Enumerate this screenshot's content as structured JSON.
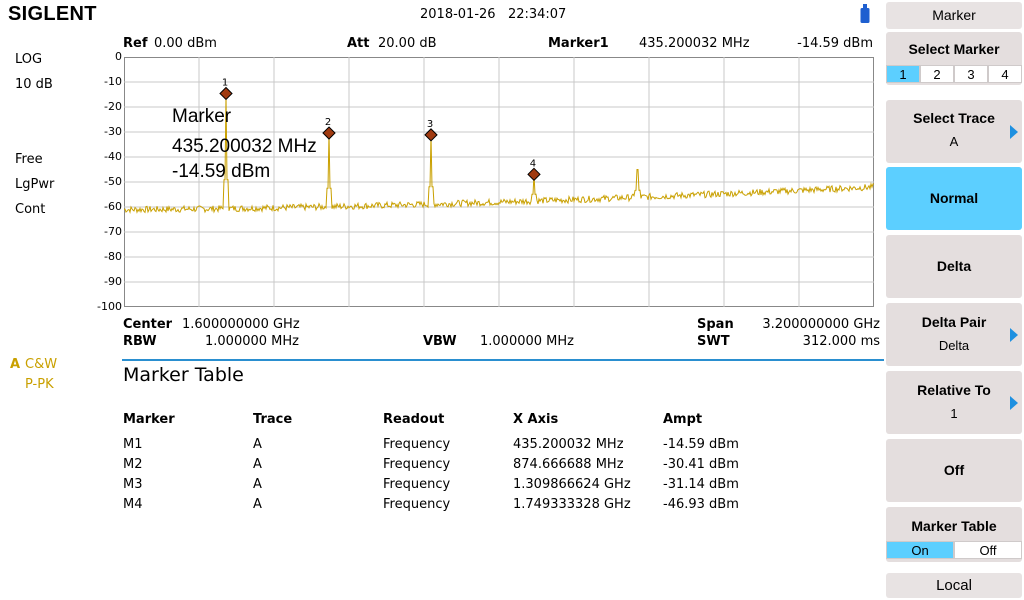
{
  "header": {
    "logo": "SIGLENT",
    "datetime": "2018-01-26   22:34:07"
  },
  "left_status": {
    "scale_type": "LOG",
    "scale_div": "10 dB",
    "mode1": "Free",
    "mode2": "LgPwr",
    "mode3": "Cont",
    "trace_letter": "A",
    "trace_mode1": "C&W",
    "trace_mode2": "P-PK"
  },
  "top_bar": {
    "ref_label": "Ref",
    "ref_value": "0.00 dBm",
    "att_label": "Att",
    "att_value": "20.00 dB",
    "marker_label": "Marker1",
    "marker_freq": "435.200032 MHz",
    "marker_ampt": "-14.59 dBm"
  },
  "graph": {
    "y_ticks": [
      "0",
      "-10",
      "-20",
      "-30",
      "-40",
      "-50",
      "-60",
      "-70",
      "-80",
      "-90",
      "-100"
    ],
    "overlay_title": "Marker",
    "overlay_freq": "435.200032 MHz",
    "overlay_ampt": "-14.59 dBm",
    "marker_labels": [
      "1",
      "2",
      "3",
      "4"
    ],
    "trace_color": "#c9a000"
  },
  "chart_data": {
    "type": "line",
    "xlim": [
      0,
      3.2
    ],
    "ylim": [
      -100,
      0
    ],
    "y_unit": "dBm",
    "markers": [
      {
        "name": "1",
        "x": 0.4352,
        "y": -14.59
      },
      {
        "name": "2",
        "x": 0.8747,
        "y": -30.41
      },
      {
        "name": "3",
        "x": 1.3099,
        "y": -31.14
      },
      {
        "name": "4",
        "x": 1.7493,
        "y": -46.93
      }
    ],
    "extra_peak": {
      "x": 2.19,
      "y": -45
    }
  },
  "bottom_info": {
    "center_label": "Center",
    "center_value": "1.600000000 GHz",
    "span_label": "Span",
    "span_value": "3.200000000 GHz",
    "rbw_label": "RBW",
    "rbw_value": "1.000000 MHz",
    "vbw_label": "VBW",
    "vbw_value": "1.000000 MHz",
    "swt_label": "SWT",
    "swt_value": "312.000 ms"
  },
  "marker_table": {
    "title": "Marker Table",
    "headers": [
      "Marker",
      "Trace",
      "Readout",
      "X Axis",
      "Ampt"
    ],
    "rows": [
      [
        "M1",
        "A",
        "Frequency",
        "435.200032 MHz",
        "-14.59 dBm"
      ],
      [
        "M2",
        "A",
        "Frequency",
        "874.666688 MHz",
        "-30.41 dBm"
      ],
      [
        "M3",
        "A",
        "Frequency",
        "1.309866624 GHz",
        "-31.14 dBm"
      ],
      [
        "M4",
        "A",
        "Frequency",
        "1.749333328 GHz",
        "-46.93 dBm"
      ]
    ]
  },
  "menu": {
    "title": "Marker",
    "select_marker": {
      "label": "Select Marker",
      "options": [
        "1",
        "2",
        "3",
        "4"
      ],
      "selected": "1"
    },
    "select_trace": {
      "label": "Select Trace",
      "value": "A"
    },
    "normal": "Normal",
    "delta": "Delta",
    "delta_pair": {
      "label": "Delta Pair",
      "value": "Delta"
    },
    "relative_to": {
      "label": "Relative To",
      "value": "1"
    },
    "off": "Off",
    "marker_table": {
      "label": "Marker Table",
      "on": "On",
      "off": "Off"
    },
    "local": "Local"
  },
  "colors": {
    "accent": "#5ccfff",
    "key_bg": "#e4dede",
    "trace": "#c9a000",
    "marker": "#a03a10"
  }
}
